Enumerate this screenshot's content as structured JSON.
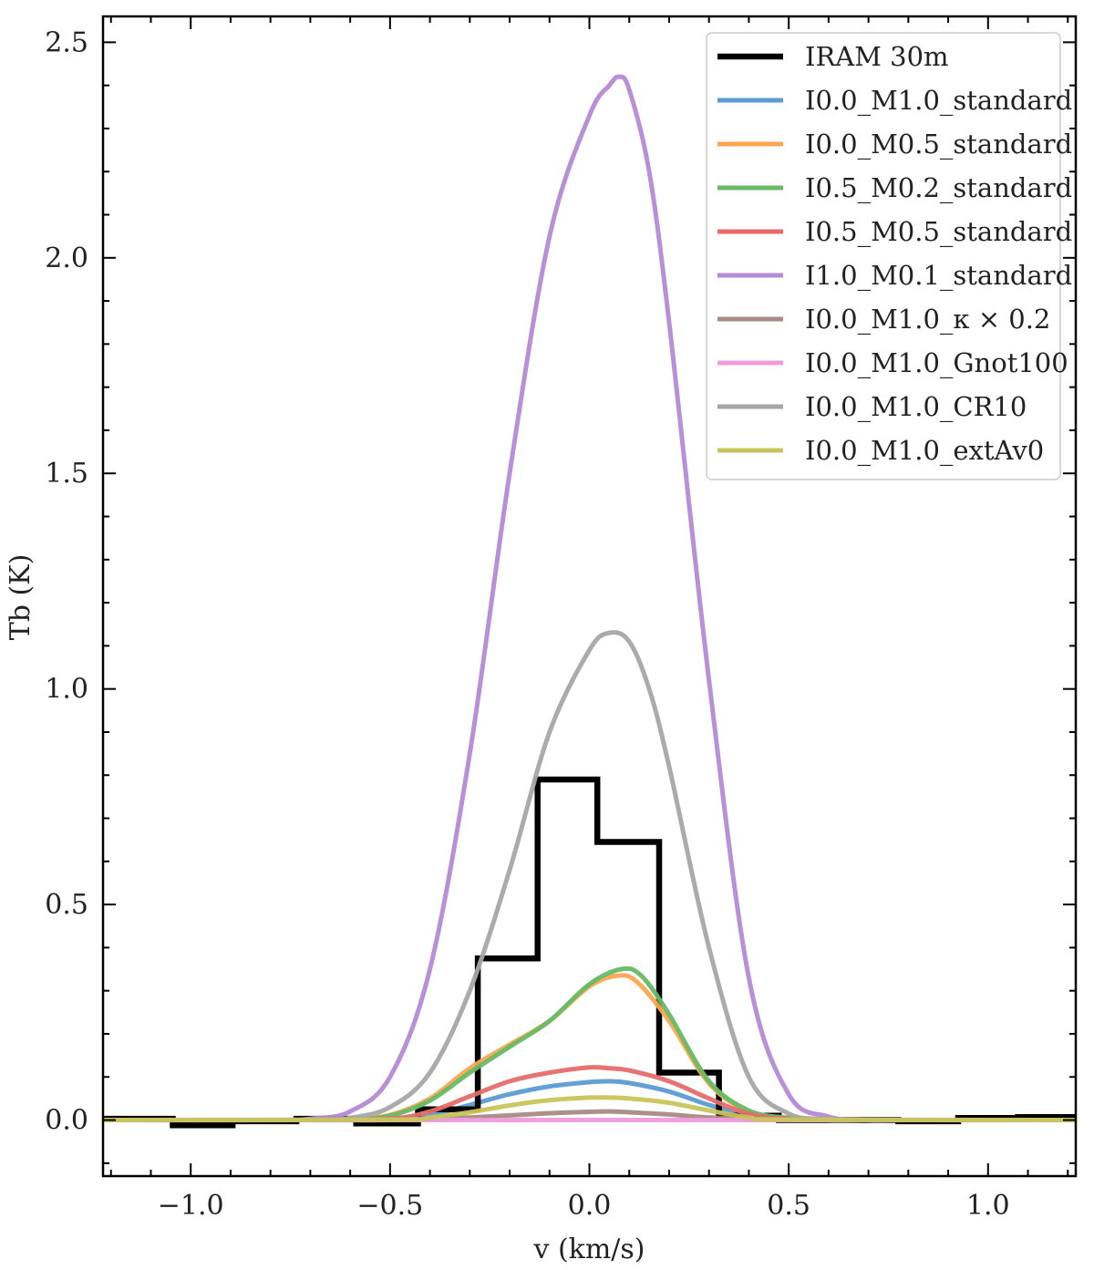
{
  "chart_data": {
    "type": "line",
    "title": "",
    "xlabel": "v (km/s)",
    "ylabel": "Tb (K)",
    "xlim": [
      -1.22,
      1.22
    ],
    "ylim": [
      -0.13,
      2.56
    ],
    "x_ticks": [
      -1.0,
      -0.5,
      0.0,
      0.5,
      1.0
    ],
    "x_tick_labels": [
      "−1.0",
      "−0.5",
      "0.0",
      "0.5",
      "1.0"
    ],
    "y_ticks": [
      0.0,
      0.5,
      1.0,
      1.5,
      2.0,
      2.5
    ],
    "y_tick_labels": [
      "0.0",
      "0.5",
      "1.0",
      "1.5",
      "2.0",
      "2.5"
    ],
    "grid": false,
    "legend_position": "top-right",
    "observed": {
      "name": "IRAM 30m",
      "color": "#000000",
      "style": "steps",
      "bin_edges": [
        -1.22,
        -1.045,
        -0.895,
        -0.735,
        -0.585,
        -0.43,
        -0.28,
        -0.13,
        0.02,
        0.175,
        0.325,
        0.475,
        0.625,
        0.775,
        0.925,
        1.075,
        1.22
      ],
      "values": [
        0.003,
        -0.012,
        -0.003,
        0.003,
        -0.008,
        0.025,
        0.375,
        0.79,
        0.645,
        0.11,
        0.01,
        0.0,
        0.0,
        -0.003,
        0.005,
        0.007
      ]
    },
    "series": [
      {
        "name": "I0.0_M1.0_standard",
        "color": "#5a9bd4",
        "x": [
          -0.7,
          -0.5,
          -0.4,
          -0.3,
          -0.2,
          -0.1,
          0.0,
          0.05,
          0.1,
          0.2,
          0.3,
          0.4,
          0.5,
          0.7
        ],
        "values": [
          0.0,
          0.002,
          0.012,
          0.035,
          0.06,
          0.078,
          0.088,
          0.09,
          0.086,
          0.066,
          0.035,
          0.01,
          0.002,
          0.0
        ]
      },
      {
        "name": "I0.0_M0.5_standard",
        "color": "#ffa54f",
        "x": [
          -0.7,
          -0.6,
          -0.5,
          -0.4,
          -0.3,
          -0.2,
          -0.1,
          0.0,
          0.07,
          0.12,
          0.2,
          0.3,
          0.4,
          0.5,
          0.6,
          0.7
        ],
        "values": [
          0.0,
          0.003,
          0.012,
          0.05,
          0.12,
          0.175,
          0.23,
          0.31,
          0.335,
          0.32,
          0.23,
          0.085,
          0.02,
          0.004,
          0.0,
          0.0
        ]
      },
      {
        "name": "I0.5_M0.2_standard",
        "color": "#66bb66",
        "x": [
          -0.7,
          -0.6,
          -0.5,
          -0.4,
          -0.3,
          -0.2,
          -0.1,
          0.0,
          0.08,
          0.13,
          0.2,
          0.3,
          0.4,
          0.5,
          0.6,
          0.7
        ],
        "values": [
          0.0,
          0.002,
          0.01,
          0.045,
          0.11,
          0.17,
          0.23,
          0.315,
          0.35,
          0.335,
          0.245,
          0.09,
          0.022,
          0.005,
          0.0,
          0.0
        ]
      },
      {
        "name": "I0.5_M0.5_standard",
        "color": "#e66b6b",
        "x": [
          -0.7,
          -0.5,
          -0.4,
          -0.3,
          -0.2,
          -0.1,
          0.0,
          0.05,
          0.1,
          0.2,
          0.3,
          0.4,
          0.5,
          0.7
        ],
        "values": [
          0.0,
          0.003,
          0.02,
          0.055,
          0.09,
          0.11,
          0.122,
          0.12,
          0.115,
          0.09,
          0.05,
          0.014,
          0.003,
          0.0
        ]
      },
      {
        "name": "I1.0_M0.1_standard",
        "color": "#b58ad6",
        "x": [
          -1.22,
          -0.8,
          -0.7,
          -0.6,
          -0.5,
          -0.4,
          -0.3,
          -0.2,
          -0.1,
          0.0,
          0.05,
          0.075,
          0.1,
          0.15,
          0.2,
          0.3,
          0.4,
          0.5,
          0.6,
          0.7,
          0.8,
          1.22
        ],
        "values": [
          0.0,
          0.0,
          0.003,
          0.02,
          0.1,
          0.35,
          0.85,
          1.5,
          2.05,
          2.33,
          2.4,
          2.42,
          2.39,
          2.2,
          1.85,
          1.02,
          0.33,
          0.06,
          0.008,
          0.0,
          0.0,
          0.0
        ]
      },
      {
        "name": "I0.0_M1.0_κ × 0.2",
        "color": "#a88a86",
        "x": [
          -0.7,
          -0.5,
          -0.3,
          -0.1,
          0.0,
          0.05,
          0.1,
          0.2,
          0.3,
          0.5,
          0.7
        ],
        "values": [
          0.0,
          0.0,
          0.006,
          0.016,
          0.019,
          0.02,
          0.018,
          0.013,
          0.006,
          0.001,
          0.0
        ]
      },
      {
        "name": "I0.0_M1.0_Gnot100",
        "color": "#ee9ddc",
        "x": [
          -1.22,
          1.22
        ],
        "values": [
          0.0,
          0.0
        ]
      },
      {
        "name": "I0.0_M1.0_CR10",
        "color": "#a6a6a6",
        "x": [
          -1.22,
          -0.7,
          -0.6,
          -0.5,
          -0.4,
          -0.3,
          -0.2,
          -0.1,
          0.0,
          0.05,
          0.1,
          0.15,
          0.2,
          0.3,
          0.4,
          0.5,
          0.6,
          0.7,
          1.22
        ],
        "values": [
          0.0,
          0.0,
          0.005,
          0.03,
          0.11,
          0.3,
          0.58,
          0.9,
          1.09,
          1.13,
          1.11,
          1.0,
          0.82,
          0.4,
          0.1,
          0.015,
          0.002,
          0.0,
          0.0
        ]
      },
      {
        "name": "I0.0_M1.0_extAv0",
        "color": "#c9c45a",
        "x": [
          -1.22,
          -0.5,
          -0.4,
          -0.3,
          -0.2,
          -0.1,
          0.0,
          0.05,
          0.1,
          0.2,
          0.3,
          0.4,
          0.5,
          1.22
        ],
        "values": [
          0.0,
          0.001,
          0.006,
          0.018,
          0.034,
          0.046,
          0.052,
          0.052,
          0.05,
          0.04,
          0.022,
          0.006,
          0.001,
          0.0
        ]
      }
    ]
  }
}
